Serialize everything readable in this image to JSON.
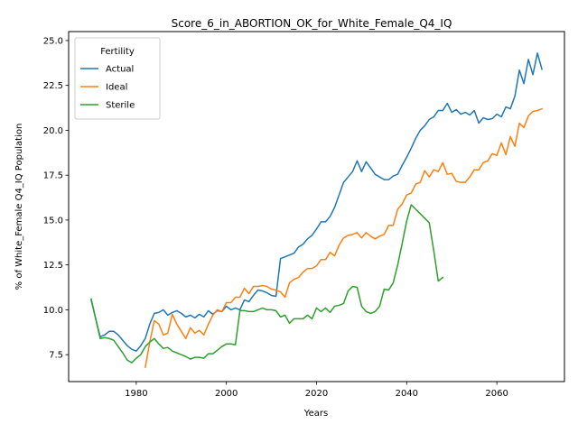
{
  "chart_data": {
    "type": "line",
    "title": "Score_6_in_ABORTION_OK_for_White_Female_Q4_IQ",
    "xlabel": "Years",
    "ylabel": "% of White_Female Q4_IQ Population",
    "xlim": [
      1965,
      2075
    ],
    "ylim": [
      6.0,
      25.5
    ],
    "xticks": [
      1980,
      2000,
      2020,
      2040,
      2060
    ],
    "yticks": [
      7.5,
      10.0,
      12.5,
      15.0,
      17.5,
      20.0,
      22.5,
      25.0
    ],
    "ytick_labels": [
      "7.5",
      "10.0",
      "12.5",
      "15.0",
      "17.5",
      "20.0",
      "22.5",
      "25.0"
    ],
    "grid": false,
    "legend": {
      "title": "Fertility",
      "position": "upper-left"
    },
    "series": [
      {
        "name": "Actual",
        "color": "#1f77b4",
        "x": [
          1970,
          1971,
          1972,
          1973,
          1974,
          1975,
          1976,
          1977,
          1978,
          1979,
          1980,
          1981,
          1982,
          1983,
          1984,
          1985,
          1986,
          1987,
          1988,
          1989,
          1990,
          1991,
          1992,
          1993,
          1994,
          1995,
          1996,
          1997,
          1998,
          1999,
          2000,
          2001,
          2002,
          2003,
          2004,
          2005,
          2006,
          2007,
          2008,
          2009,
          2010,
          2011,
          2012,
          2013,
          2014,
          2015,
          2016,
          2017,
          2018,
          2019,
          2020,
          2021,
          2022,
          2023,
          2024,
          2025,
          2026,
          2027,
          2028,
          2029,
          2030,
          2031,
          2032,
          2033,
          2034,
          2035,
          2036,
          2037,
          2038,
          2039,
          2040,
          2041,
          2042,
          2043,
          2044,
          2045,
          2046,
          2047,
          2048,
          2049,
          2050,
          2051,
          2052,
          2053,
          2054,
          2055,
          2056,
          2057,
          2058,
          2059,
          2060,
          2061,
          2062,
          2063,
          2064,
          2065,
          2066,
          2067,
          2068,
          2069,
          2070
        ],
        "y": [
          10.6,
          9.5,
          8.5,
          8.6,
          8.8,
          8.8,
          8.6,
          8.3,
          8.0,
          7.8,
          7.7,
          8.0,
          8.4,
          9.2,
          9.8,
          9.85,
          10.0,
          9.7,
          9.85,
          9.95,
          9.8,
          9.6,
          9.7,
          9.55,
          9.75,
          9.6,
          9.95,
          9.75,
          9.95,
          9.9,
          10.2,
          10.0,
          10.1,
          10.0,
          10.55,
          10.45,
          10.8,
          11.1,
          11.05,
          10.95,
          10.8,
          10.75,
          12.85,
          12.95,
          13.05,
          13.15,
          13.5,
          13.65,
          13.95,
          14.15,
          14.5,
          14.9,
          14.9,
          15.2,
          15.7,
          16.4,
          17.1,
          17.4,
          17.7,
          18.3,
          17.7,
          18.25,
          17.9,
          17.55,
          17.4,
          17.25,
          17.25,
          17.45,
          17.55,
          18.05,
          18.5,
          19.0,
          19.55,
          20.0,
          20.25,
          20.6,
          20.75,
          21.1,
          21.1,
          21.5,
          21.0,
          21.15,
          20.9,
          21.0,
          20.85,
          21.1,
          20.4,
          20.7,
          20.6,
          20.65,
          20.9,
          20.75,
          21.3,
          21.2,
          21.9,
          23.35,
          22.6,
          23.95,
          23.1,
          24.3,
          23.4
        ]
      },
      {
        "name": "Ideal",
        "color": "#ff7f0e",
        "x": [
          1982,
          1983,
          1984,
          1985,
          1986,
          1987,
          1988,
          1989,
          1990,
          1991,
          1992,
          1993,
          1994,
          1995,
          1996,
          1997,
          1998,
          1999,
          2000,
          2001,
          2002,
          2003,
          2004,
          2005,
          2006,
          2007,
          2008,
          2009,
          2010,
          2011,
          2012,
          2013,
          2014,
          2015,
          2016,
          2017,
          2018,
          2019,
          2020,
          2021,
          2022,
          2023,
          2024,
          2025,
          2026,
          2027,
          2028,
          2029,
          2030,
          2031,
          2032,
          2033,
          2034,
          2035,
          2036,
          2037,
          2038,
          2039,
          2040,
          2041,
          2042,
          2043,
          2044,
          2045,
          2046,
          2047,
          2048,
          2049,
          2050,
          2051,
          2052,
          2053,
          2054,
          2055,
          2056,
          2057,
          2058,
          2059,
          2060,
          2061,
          2062,
          2063,
          2064,
          2065,
          2066,
          2067,
          2068,
          2069,
          2070
        ],
        "y": [
          6.8,
          8.2,
          9.4,
          9.2,
          8.6,
          8.7,
          9.75,
          9.2,
          8.8,
          8.4,
          9.0,
          8.7,
          8.85,
          8.6,
          9.2,
          9.7,
          10.0,
          9.9,
          10.4,
          10.4,
          10.7,
          10.7,
          11.2,
          10.9,
          11.3,
          11.3,
          11.35,
          11.3,
          11.15,
          11.1,
          11.0,
          10.7,
          11.5,
          11.7,
          11.8,
          12.1,
          12.3,
          12.3,
          12.45,
          12.8,
          12.8,
          13.2,
          13.0,
          13.6,
          14.0,
          14.15,
          14.2,
          14.3,
          14.0,
          14.3,
          14.1,
          13.95,
          14.1,
          14.2,
          14.7,
          14.7,
          15.6,
          15.9,
          16.4,
          16.5,
          17.0,
          17.1,
          17.75,
          17.4,
          17.8,
          17.7,
          18.2,
          17.55,
          17.6,
          17.15,
          17.1,
          17.1,
          17.4,
          17.8,
          17.8,
          18.2,
          18.3,
          18.7,
          18.6,
          19.3,
          18.65,
          19.65,
          19.1,
          20.4,
          20.15,
          20.8,
          21.05,
          21.1,
          21.2
        ]
      },
      {
        "name": "Sterile",
        "color": "#2ca02c",
        "x": [
          1970,
          1971,
          1972,
          1973,
          1974,
          1975,
          1976,
          1977,
          1978,
          1979,
          1980,
          1981,
          1982,
          1983,
          1984,
          1985,
          1986,
          1987,
          1988,
          1989,
          1990,
          1991,
          1992,
          1993,
          1994,
          1995,
          1996,
          1997,
          1998,
          1999,
          2000,
          2001,
          2002,
          2003,
          2004,
          2005,
          2006,
          2007,
          2008,
          2009,
          2010,
          2011,
          2012,
          2013,
          2014,
          2015,
          2016,
          2017,
          2018,
          2019,
          2020,
          2021,
          2022,
          2023,
          2024,
          2025,
          2026,
          2027,
          2028,
          2029,
          2030,
          2031,
          2032,
          2033,
          2034,
          2035,
          2036,
          2037,
          2038,
          2039,
          2040,
          2041,
          2042,
          2043,
          2044,
          2045,
          2046,
          2047,
          2048
        ],
        "y": [
          10.55,
          9.5,
          8.4,
          8.45,
          8.4,
          8.3,
          7.95,
          7.6,
          7.2,
          7.05,
          7.3,
          7.5,
          7.95,
          8.2,
          8.4,
          8.1,
          7.85,
          7.9,
          7.7,
          7.6,
          7.5,
          7.4,
          7.25,
          7.35,
          7.35,
          7.3,
          7.55,
          7.55,
          7.75,
          7.95,
          8.1,
          8.1,
          8.05,
          9.95,
          9.95,
          9.9,
          9.9,
          10.0,
          10.1,
          10.0,
          10.0,
          9.95,
          9.6,
          9.7,
          9.25,
          9.5,
          9.5,
          9.5,
          9.7,
          9.5,
          10.1,
          9.9,
          10.1,
          9.85,
          10.2,
          10.25,
          10.35,
          11.05,
          11.3,
          11.25,
          10.2,
          9.9,
          9.8,
          9.9,
          10.2,
          11.15,
          11.1,
          11.5,
          12.5,
          13.7,
          14.95,
          15.85,
          15.6,
          15.35,
          15.1,
          14.85,
          13.3,
          11.6,
          11.8
        ]
      }
    ]
  }
}
